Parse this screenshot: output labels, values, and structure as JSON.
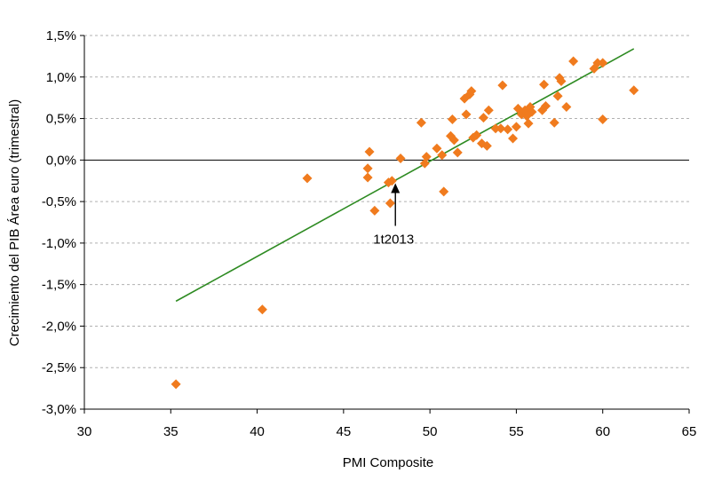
{
  "chart_data": {
    "type": "scatter",
    "title": "",
    "xlabel": "PMI Composite",
    "ylabel": "Crecimiento del PIB Área euro (trimestral)",
    "xlim": [
      30,
      65
    ],
    "ylim": [
      -3.0,
      1.5
    ],
    "x_ticks": [
      30,
      35,
      40,
      45,
      50,
      55,
      60,
      65
    ],
    "y_ticks": [
      1.5,
      1.0,
      0.5,
      0.0,
      -0.5,
      -1.0,
      -1.5,
      -2.0,
      -2.5,
      -3.0
    ],
    "x_tick_labels": [
      "30",
      "35",
      "40",
      "45",
      "50",
      "55",
      "60",
      "65"
    ],
    "y_tick_labels": [
      "1,5%",
      "1,0%",
      "0,5%",
      "0,0%",
      "-0,5%",
      "-1,0%",
      "-1,5%",
      "-2,0%",
      "-2,5%",
      "-3,0%"
    ],
    "grid": {
      "horizontal": true,
      "vertical": false,
      "style": "dashed"
    },
    "legend": "none",
    "marker": {
      "shape": "diamond",
      "color": "#f07b1e"
    },
    "trendline": {
      "type": "linear",
      "color": "#2e8b22",
      "x": [
        35.3,
        61.8
      ],
      "y": [
        -1.7,
        1.34
      ]
    },
    "annotations": [
      {
        "text": "1t2013",
        "x": 48.0,
        "y": -0.28,
        "arrow": true
      }
    ],
    "points": [
      {
        "x": 35.3,
        "y": -2.7
      },
      {
        "x": 40.3,
        "y": -1.8
      },
      {
        "x": 42.9,
        "y": -0.22
      },
      {
        "x": 46.4,
        "y": -0.1
      },
      {
        "x": 46.4,
        "y": -0.21
      },
      {
        "x": 46.5,
        "y": 0.1
      },
      {
        "x": 46.8,
        "y": -0.61
      },
      {
        "x": 47.6,
        "y": -0.27
      },
      {
        "x": 47.7,
        "y": -0.52
      },
      {
        "x": 47.8,
        "y": -0.25
      },
      {
        "x": 48.3,
        "y": 0.02
      },
      {
        "x": 49.5,
        "y": 0.45
      },
      {
        "x": 49.7,
        "y": -0.04
      },
      {
        "x": 49.8,
        "y": 0.04
      },
      {
        "x": 50.4,
        "y": 0.14
      },
      {
        "x": 50.7,
        "y": 0.06
      },
      {
        "x": 50.8,
        "y": -0.38
      },
      {
        "x": 51.2,
        "y": 0.29
      },
      {
        "x": 51.3,
        "y": 0.49
      },
      {
        "x": 51.4,
        "y": 0.24
      },
      {
        "x": 51.6,
        "y": 0.09
      },
      {
        "x": 52.0,
        "y": 0.74
      },
      {
        "x": 52.1,
        "y": 0.55
      },
      {
        "x": 52.3,
        "y": 0.79
      },
      {
        "x": 52.4,
        "y": 0.83
      },
      {
        "x": 52.5,
        "y": 0.27
      },
      {
        "x": 52.7,
        "y": 0.3
      },
      {
        "x": 53.0,
        "y": 0.2
      },
      {
        "x": 53.1,
        "y": 0.51
      },
      {
        "x": 53.3,
        "y": 0.17
      },
      {
        "x": 53.4,
        "y": 0.6
      },
      {
        "x": 53.8,
        "y": 0.38
      },
      {
        "x": 54.1,
        "y": 0.38
      },
      {
        "x": 54.2,
        "y": 0.9
      },
      {
        "x": 54.5,
        "y": 0.37
      },
      {
        "x": 54.8,
        "y": 0.26
      },
      {
        "x": 55.0,
        "y": 0.4
      },
      {
        "x": 55.1,
        "y": 0.62
      },
      {
        "x": 55.3,
        "y": 0.55
      },
      {
        "x": 55.5,
        "y": 0.6
      },
      {
        "x": 55.6,
        "y": 0.53
      },
      {
        "x": 55.7,
        "y": 0.44
      },
      {
        "x": 55.8,
        "y": 0.64
      },
      {
        "x": 55.9,
        "y": 0.58
      },
      {
        "x": 56.5,
        "y": 0.6
      },
      {
        "x": 56.6,
        "y": 0.91
      },
      {
        "x": 56.7,
        "y": 0.65
      },
      {
        "x": 57.2,
        "y": 0.45
      },
      {
        "x": 57.4,
        "y": 0.77
      },
      {
        "x": 57.5,
        "y": 0.99
      },
      {
        "x": 57.6,
        "y": 0.95
      },
      {
        "x": 57.9,
        "y": 0.64
      },
      {
        "x": 58.3,
        "y": 1.19
      },
      {
        "x": 59.5,
        "y": 1.1
      },
      {
        "x": 59.7,
        "y": 1.17
      },
      {
        "x": 60.0,
        "y": 1.17
      },
      {
        "x": 60.0,
        "y": 0.49
      },
      {
        "x": 61.8,
        "y": 0.84
      }
    ]
  }
}
